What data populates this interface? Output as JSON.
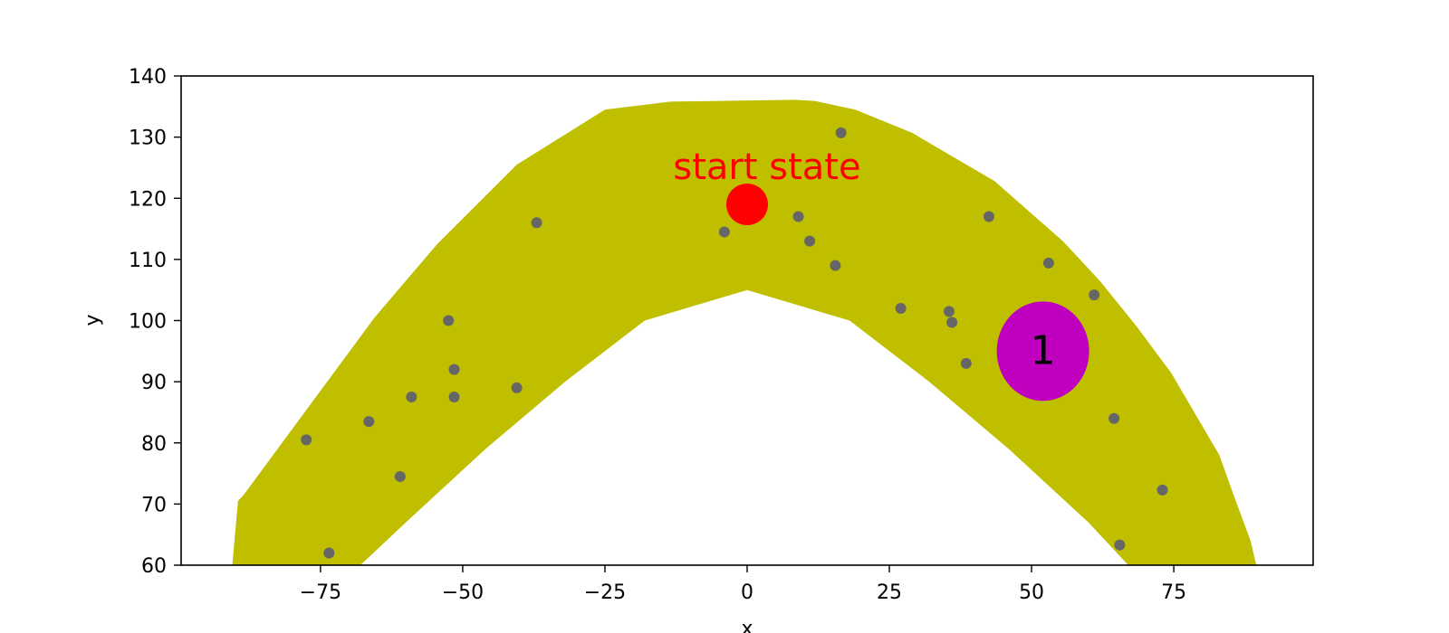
{
  "chart_data": {
    "type": "scatter",
    "xlabel": "x",
    "ylabel": "y",
    "xlim": [
      -99.5,
      99.5
    ],
    "ylim": [
      60,
      140
    ],
    "x_ticks": [
      -75,
      -50,
      -25,
      0,
      25,
      50,
      75
    ],
    "x_tick_labels": [
      "−75",
      "−50",
      "−25",
      "0",
      "25",
      "50",
      "75"
    ],
    "y_ticks": [
      60,
      70,
      80,
      90,
      100,
      110,
      120,
      130,
      140
    ],
    "y_tick_labels": [
      "60",
      "70",
      "80",
      "90",
      "100",
      "110",
      "120",
      "130",
      "140"
    ],
    "grid": false,
    "band": {
      "color": "#bfbf00",
      "outer": [
        [
          -90.5,
          60
        ],
        [
          -89.5,
          70.5
        ],
        [
          -88.5,
          71.5
        ],
        [
          -65.5,
          100.5
        ],
        [
          -54.5,
          112.5
        ],
        [
          -40.5,
          125.5
        ],
        [
          -25,
          134.5
        ],
        [
          -13.5,
          135.8
        ],
        [
          0,
          136
        ],
        [
          8.5,
          136.1
        ],
        [
          12,
          135.9
        ],
        [
          19,
          134.5
        ],
        [
          29,
          130.7
        ],
        [
          43.5,
          122.8
        ],
        [
          55.5,
          113
        ],
        [
          62,
          106.5
        ],
        [
          68.5,
          99
        ],
        [
          74.5,
          91.5
        ],
        [
          83,
          78
        ],
        [
          85.5,
          71.5
        ],
        [
          88.5,
          64
        ],
        [
          89.5,
          60
        ]
      ],
      "inner": [
        [
          67,
          60
        ],
        [
          60,
          67
        ],
        [
          46,
          79
        ],
        [
          32,
          90
        ],
        [
          18,
          100
        ],
        [
          0,
          105
        ],
        [
          -18,
          100
        ],
        [
          -32,
          90
        ],
        [
          -46,
          79
        ],
        [
          -60,
          67
        ],
        [
          -68,
          60
        ]
      ]
    },
    "points": {
      "color": "#666666",
      "x": [
        -77.5,
        -73.5,
        -66.5,
        -61,
        -59,
        -52.5,
        -51.5,
        -51.5,
        -40.5,
        -37,
        -4,
        9,
        11,
        15.5,
        16.5,
        27,
        35.5,
        36,
        38.5,
        42.5,
        53,
        61,
        64.5,
        65.5,
        73
      ],
      "y": [
        80.5,
        62,
        83.5,
        74.5,
        87.5,
        100,
        92,
        87.5,
        89,
        116,
        114.5,
        117,
        113,
        109,
        130.7,
        102,
        101.5,
        99.7,
        93,
        117,
        109.4,
        104.2,
        84,
        63.3,
        72.3
      ]
    },
    "start": {
      "x": 0,
      "y": 119,
      "color": "#ff0000",
      "label": "start state"
    },
    "goals": [
      {
        "x": 52,
        "y": 95,
        "color": "#bf00bf",
        "label": "1"
      }
    ]
  }
}
